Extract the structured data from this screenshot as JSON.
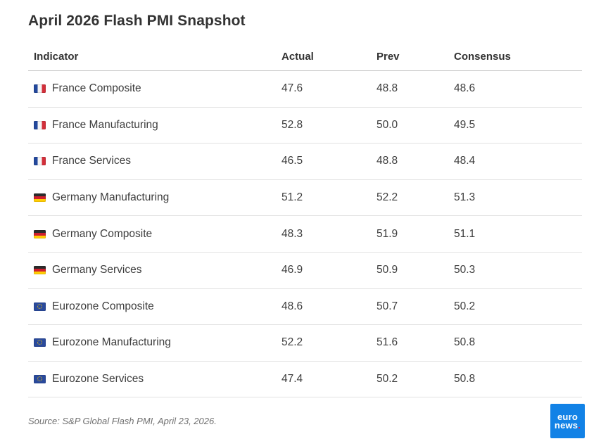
{
  "title": "April 2026 Flash PMI Snapshot",
  "table": {
    "columns": [
      "Indicator",
      "Actual",
      "Prev",
      "Consensus"
    ],
    "rows": [
      {
        "flag": "fr",
        "flag_name": "france-flag-icon",
        "indicator": "France Composite",
        "actual": "47.6",
        "prev": "48.8",
        "consensus": "48.6"
      },
      {
        "flag": "fr",
        "flag_name": "france-flag-icon",
        "indicator": "France Manufacturing",
        "actual": "52.8",
        "prev": "50.0",
        "consensus": "49.5"
      },
      {
        "flag": "fr",
        "flag_name": "france-flag-icon",
        "indicator": "France Services",
        "actual": "46.5",
        "prev": "48.8",
        "consensus": "48.4"
      },
      {
        "flag": "de",
        "flag_name": "germany-flag-icon",
        "indicator": "Germany Manufacturing",
        "actual": "51.2",
        "prev": "52.2",
        "consensus": "51.3"
      },
      {
        "flag": "de",
        "flag_name": "germany-flag-icon",
        "indicator": "Germany Composite",
        "actual": "48.3",
        "prev": "51.9",
        "consensus": "51.1"
      },
      {
        "flag": "de",
        "flag_name": "germany-flag-icon",
        "indicator": "Germany Services",
        "actual": "46.9",
        "prev": "50.9",
        "consensus": "50.3"
      },
      {
        "flag": "eu",
        "flag_name": "eurozone-flag-icon",
        "indicator": "Eurozone Composite",
        "actual": "48.6",
        "prev": "50.7",
        "consensus": "50.2"
      },
      {
        "flag": "eu",
        "flag_name": "eurozone-flag-icon",
        "indicator": "Eurozone Manufacturing",
        "actual": "52.2",
        "prev": "51.6",
        "consensus": "50.8"
      },
      {
        "flag": "eu",
        "flag_name": "eurozone-flag-icon",
        "indicator": "Eurozone Services",
        "actual": "47.4",
        "prev": "50.2",
        "consensus": "50.8"
      }
    ]
  },
  "source": "Source: S&P Global Flash PMI, April 23, 2026.",
  "logo": {
    "line1": "euro",
    "line2": "news",
    "dot": ".",
    "background_color": "#1282e6",
    "dot_color": "#e0263f"
  }
}
